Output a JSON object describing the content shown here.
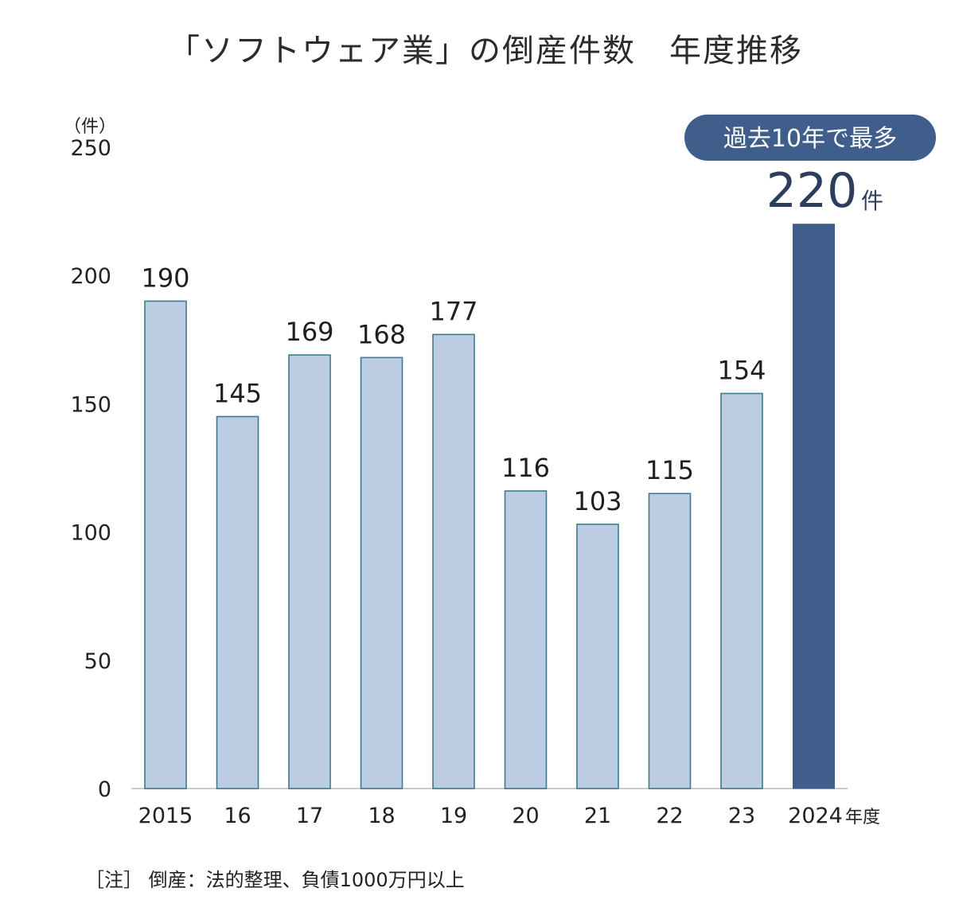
{
  "chart_data": {
    "type": "bar",
    "title": "「ソフトウェア業」の倒産件数　年度推移",
    "ylabel": "（件）",
    "x_unit": "年度",
    "categories": [
      "2015",
      "16",
      "17",
      "18",
      "19",
      "20",
      "21",
      "22",
      "23",
      "2024"
    ],
    "values": [
      190,
      145,
      169,
      168,
      177,
      116,
      103,
      115,
      154,
      220
    ],
    "data_labels": [
      "190",
      "145",
      "169",
      "168",
      "177",
      "116",
      "103",
      "115",
      "154",
      "220"
    ],
    "ylim": [
      0,
      250
    ],
    "y_ticks": [
      "0",
      "50",
      "100",
      "150",
      "200",
      "250"
    ],
    "grid": false,
    "highlight": {
      "index": 9,
      "badge": "過去10年で最多",
      "value_label": "220",
      "unit": "件"
    },
    "colors": {
      "bar": "#bccde3",
      "bar_edge": "#3d7b8a",
      "highlight_bar": "#3f5e8c",
      "badge_bg": "#3f5e8c",
      "axis": "#bbbbbb"
    },
    "note": "［注］ 倒産：法的整理、負債1000万円以上"
  }
}
